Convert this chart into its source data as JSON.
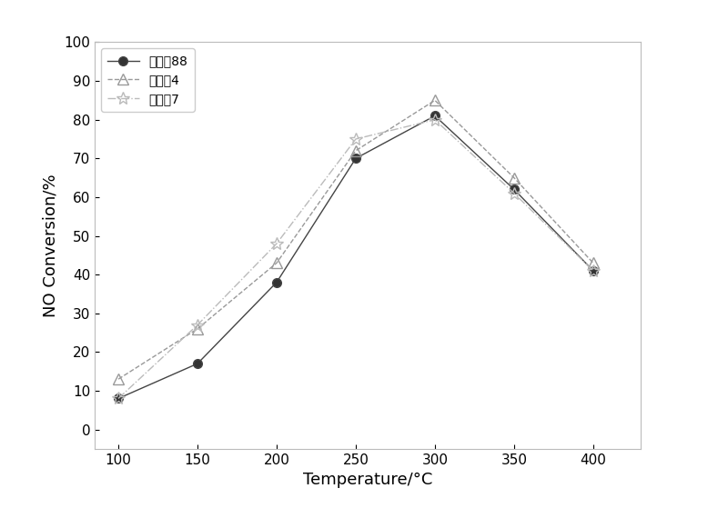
{
  "series": [
    {
      "label": "催化劉88",
      "x": [
        100,
        150,
        200,
        250,
        300,
        350,
        400
      ],
      "y": [
        8,
        17,
        38,
        70,
        81,
        62,
        41
      ],
      "color": "#444444",
      "marker": "o",
      "linestyle": "-",
      "markersize": 7,
      "markerfacecolor": "#333333",
      "linewidth": 1.0
    },
    {
      "label": "催化劘4",
      "x": [
        100,
        150,
        200,
        250,
        300,
        350,
        400
      ],
      "y": [
        13,
        26,
        43,
        72,
        85,
        65,
        43
      ],
      "color": "#999999",
      "marker": "^",
      "linestyle": "--",
      "markersize": 8,
      "markerfacecolor": "none",
      "linewidth": 1.0
    },
    {
      "label": "催化劘7",
      "x": [
        100,
        150,
        200,
        250,
        300,
        350,
        400
      ],
      "y": [
        8,
        27,
        48,
        75,
        80,
        61,
        41
      ],
      "color": "#bbbbbb",
      "marker": "*",
      "linestyle": "-.",
      "markersize": 10,
      "markerfacecolor": "none",
      "linewidth": 1.0
    }
  ],
  "xlabel": "Temperature/°C",
  "ylabel": "NO Conversion/%",
  "xlim": [
    85,
    430
  ],
  "ylim": [
    -5,
    100
  ],
  "xticks": [
    100,
    150,
    200,
    250,
    300,
    350,
    400
  ],
  "yticks": [
    0,
    10,
    20,
    30,
    40,
    50,
    60,
    70,
    80,
    90,
    100
  ],
  "background_color": "#ffffff",
  "legend_loc": "upper left",
  "axis_fontsize": 13,
  "tick_fontsize": 11,
  "legend_fontsize": 10
}
